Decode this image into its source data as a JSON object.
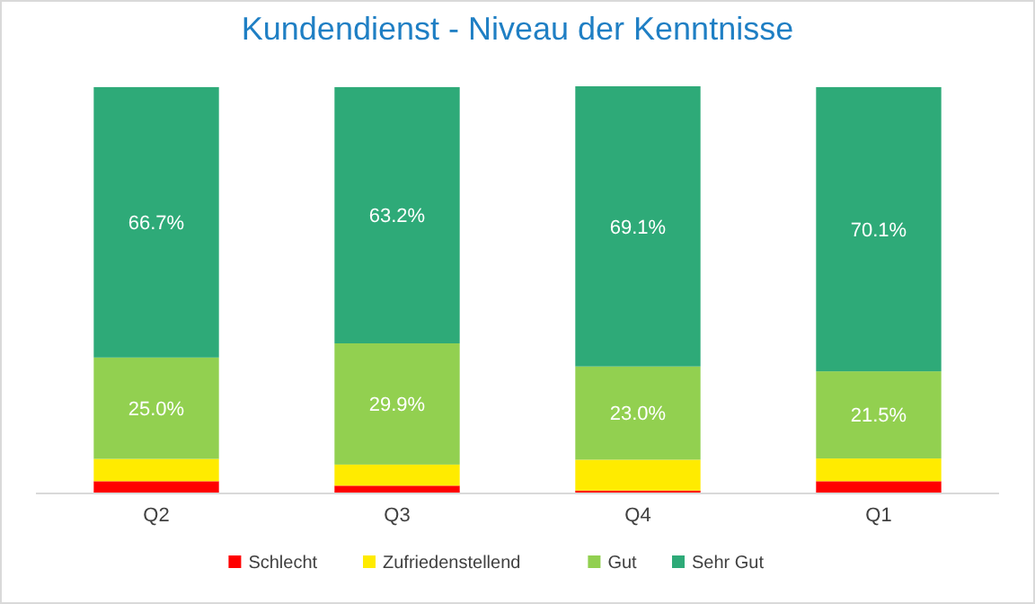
{
  "chart_data": {
    "type": "bar",
    "title": "Kundendienst - Niveau der Kenntnisse",
    "categories": [
      "Q2",
      "Q3",
      "Q4",
      "Q1"
    ],
    "stacked": true,
    "legend": "bottom",
    "series": [
      {
        "name": "Schlecht",
        "color": "#ff0000",
        "values": [
          2.8,
          1.7,
          0.5,
          2.8
        ],
        "value_labels": [
          null,
          null,
          null,
          null
        ]
      },
      {
        "name": "Zufriedenstellend",
        "color": "#ffeb00",
        "values": [
          5.5,
          5.2,
          7.6,
          5.6
        ],
        "value_labels": [
          null,
          null,
          null,
          null
        ]
      },
      {
        "name": "Gut",
        "color": "#92d050",
        "values": [
          25.0,
          29.9,
          23.0,
          21.5
        ],
        "value_labels": [
          "25.0%",
          "29.9%",
          "23.0%",
          "21.5%"
        ]
      },
      {
        "name": "Sehr Gut",
        "color": "#2eaa78",
        "values": [
          66.7,
          63.2,
          69.1,
          70.1
        ],
        "value_labels": [
          "66.7%",
          "63.2%",
          "69.1%",
          "70.1%"
        ]
      }
    ]
  }
}
